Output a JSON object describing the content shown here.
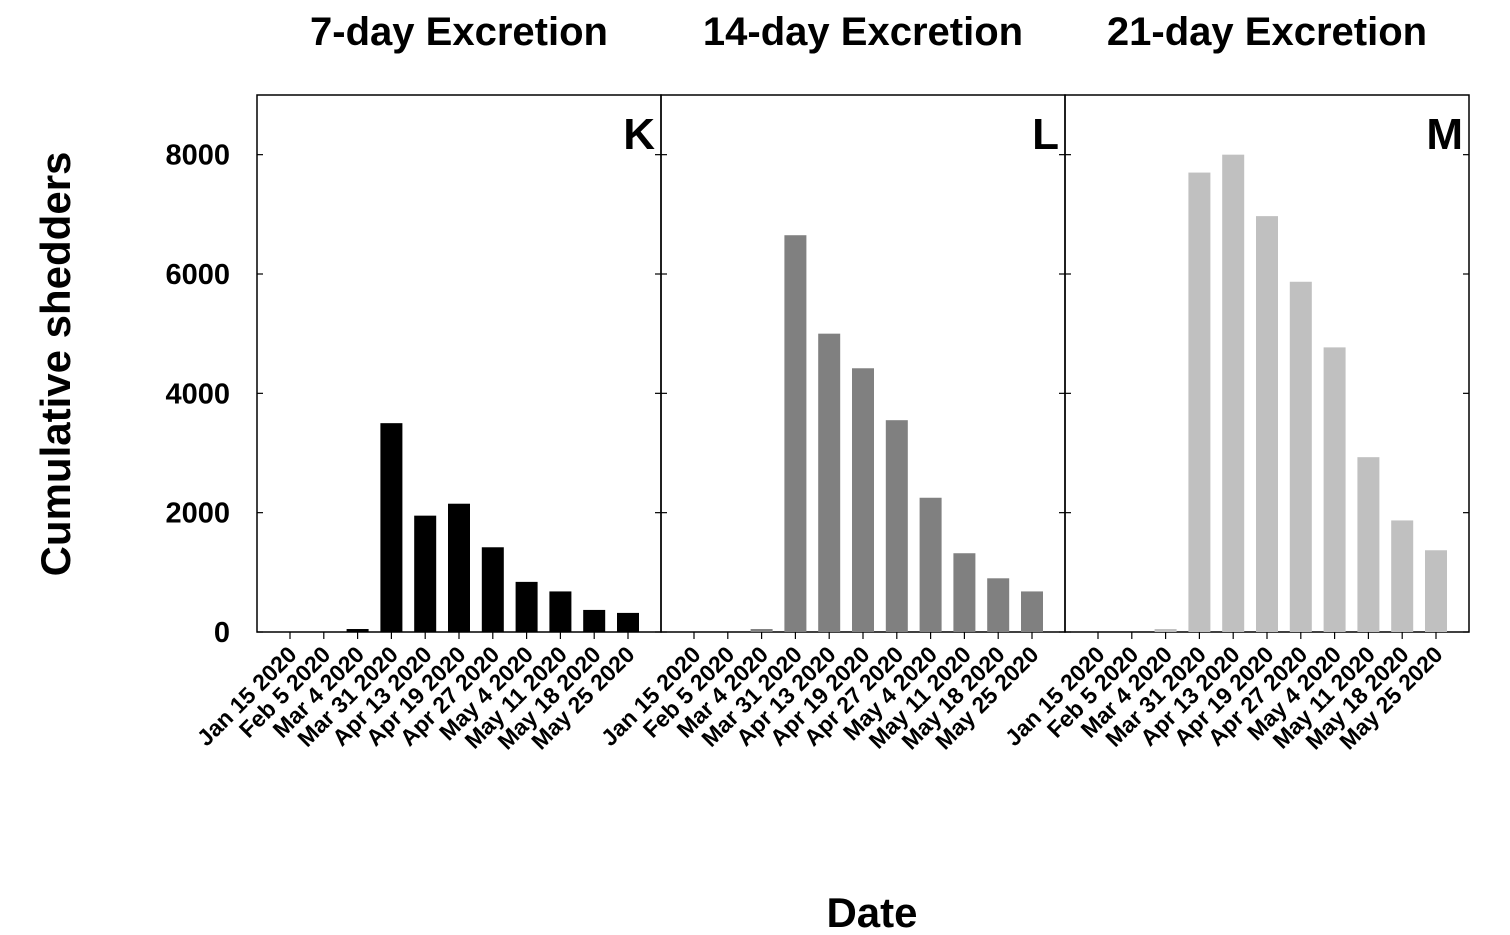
{
  "chart_data": {
    "type": "bar",
    "ylabel": "Cumulative shedders",
    "xlabel": "Date",
    "ylim": [
      0,
      9000
    ],
    "yticks": [
      0,
      2000,
      4000,
      6000,
      8000
    ],
    "categories": [
      "Jan 15 2020",
      "Feb 5 2020",
      "Mar 4 2020",
      "Mar 31 2020",
      "Apr 13 2020",
      "Apr 19 2020",
      "Apr 27 2020",
      "May 4 2020",
      "May 11 2020",
      "May 18 2020",
      "May 25 2020"
    ],
    "panels": [
      {
        "title": "7-day Excretion",
        "letter": "K",
        "color": "#000000",
        "values": [
          0,
          0,
          50,
          3500,
          1950,
          2150,
          1420,
          840,
          680,
          370,
          320
        ]
      },
      {
        "title": "14-day Excretion",
        "letter": "L",
        "color": "#808080",
        "values": [
          0,
          0,
          50,
          6650,
          5000,
          4420,
          3550,
          2250,
          1320,
          900,
          680
        ]
      },
      {
        "title": "21-day Excretion",
        "letter": "M",
        "color": "#c0c0c0",
        "values": [
          0,
          0,
          50,
          7700,
          8000,
          6970,
          5870,
          4770,
          2930,
          1870,
          1370
        ]
      }
    ]
  }
}
